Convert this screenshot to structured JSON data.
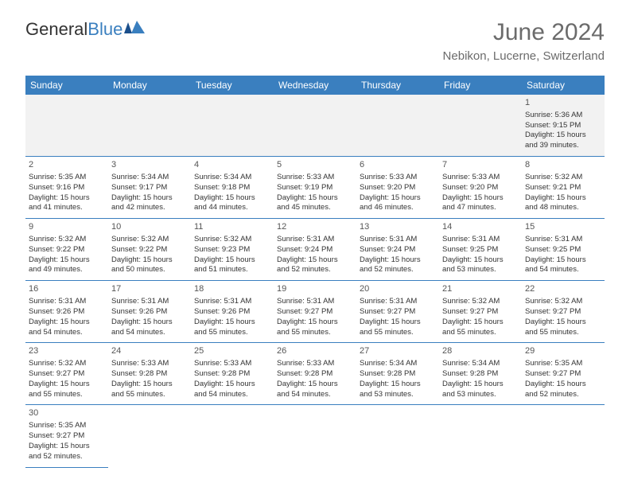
{
  "logo": {
    "text1": "General",
    "text2": "Blue"
  },
  "title": "June 2024",
  "location": "Nebikon, Lucerne, Switzerland",
  "colors": {
    "header_bg": "#3a7fbf",
    "header_text": "#ffffff",
    "alt_row_bg": "#f2f2f2",
    "border": "#3a7fbf",
    "text": "#333333",
    "title_text": "#6b6b6b"
  },
  "typography": {
    "title_fontsize": 30,
    "location_fontsize": 15,
    "dayheader_fontsize": 12,
    "cell_fontsize": 9.5
  },
  "day_headers": [
    "Sunday",
    "Monday",
    "Tuesday",
    "Wednesday",
    "Thursday",
    "Friday",
    "Saturday"
  ],
  "weeks": [
    [
      null,
      null,
      null,
      null,
      null,
      null,
      {
        "n": "1",
        "sr": "Sunrise: 5:36 AM",
        "ss": "Sunset: 9:15 PM",
        "d1": "Daylight: 15 hours",
        "d2": "and 39 minutes."
      }
    ],
    [
      {
        "n": "2",
        "sr": "Sunrise: 5:35 AM",
        "ss": "Sunset: 9:16 PM",
        "d1": "Daylight: 15 hours",
        "d2": "and 41 minutes."
      },
      {
        "n": "3",
        "sr": "Sunrise: 5:34 AM",
        "ss": "Sunset: 9:17 PM",
        "d1": "Daylight: 15 hours",
        "d2": "and 42 minutes."
      },
      {
        "n": "4",
        "sr": "Sunrise: 5:34 AM",
        "ss": "Sunset: 9:18 PM",
        "d1": "Daylight: 15 hours",
        "d2": "and 44 minutes."
      },
      {
        "n": "5",
        "sr": "Sunrise: 5:33 AM",
        "ss": "Sunset: 9:19 PM",
        "d1": "Daylight: 15 hours",
        "d2": "and 45 minutes."
      },
      {
        "n": "6",
        "sr": "Sunrise: 5:33 AM",
        "ss": "Sunset: 9:20 PM",
        "d1": "Daylight: 15 hours",
        "d2": "and 46 minutes."
      },
      {
        "n": "7",
        "sr": "Sunrise: 5:33 AM",
        "ss": "Sunset: 9:20 PM",
        "d1": "Daylight: 15 hours",
        "d2": "and 47 minutes."
      },
      {
        "n": "8",
        "sr": "Sunrise: 5:32 AM",
        "ss": "Sunset: 9:21 PM",
        "d1": "Daylight: 15 hours",
        "d2": "and 48 minutes."
      }
    ],
    [
      {
        "n": "9",
        "sr": "Sunrise: 5:32 AM",
        "ss": "Sunset: 9:22 PM",
        "d1": "Daylight: 15 hours",
        "d2": "and 49 minutes."
      },
      {
        "n": "10",
        "sr": "Sunrise: 5:32 AM",
        "ss": "Sunset: 9:22 PM",
        "d1": "Daylight: 15 hours",
        "d2": "and 50 minutes."
      },
      {
        "n": "11",
        "sr": "Sunrise: 5:32 AM",
        "ss": "Sunset: 9:23 PM",
        "d1": "Daylight: 15 hours",
        "d2": "and 51 minutes."
      },
      {
        "n": "12",
        "sr": "Sunrise: 5:31 AM",
        "ss": "Sunset: 9:24 PM",
        "d1": "Daylight: 15 hours",
        "d2": "and 52 minutes."
      },
      {
        "n": "13",
        "sr": "Sunrise: 5:31 AM",
        "ss": "Sunset: 9:24 PM",
        "d1": "Daylight: 15 hours",
        "d2": "and 52 minutes."
      },
      {
        "n": "14",
        "sr": "Sunrise: 5:31 AM",
        "ss": "Sunset: 9:25 PM",
        "d1": "Daylight: 15 hours",
        "d2": "and 53 minutes."
      },
      {
        "n": "15",
        "sr": "Sunrise: 5:31 AM",
        "ss": "Sunset: 9:25 PM",
        "d1": "Daylight: 15 hours",
        "d2": "and 54 minutes."
      }
    ],
    [
      {
        "n": "16",
        "sr": "Sunrise: 5:31 AM",
        "ss": "Sunset: 9:26 PM",
        "d1": "Daylight: 15 hours",
        "d2": "and 54 minutes."
      },
      {
        "n": "17",
        "sr": "Sunrise: 5:31 AM",
        "ss": "Sunset: 9:26 PM",
        "d1": "Daylight: 15 hours",
        "d2": "and 54 minutes."
      },
      {
        "n": "18",
        "sr": "Sunrise: 5:31 AM",
        "ss": "Sunset: 9:26 PM",
        "d1": "Daylight: 15 hours",
        "d2": "and 55 minutes."
      },
      {
        "n": "19",
        "sr": "Sunrise: 5:31 AM",
        "ss": "Sunset: 9:27 PM",
        "d1": "Daylight: 15 hours",
        "d2": "and 55 minutes."
      },
      {
        "n": "20",
        "sr": "Sunrise: 5:31 AM",
        "ss": "Sunset: 9:27 PM",
        "d1": "Daylight: 15 hours",
        "d2": "and 55 minutes."
      },
      {
        "n": "21",
        "sr": "Sunrise: 5:32 AM",
        "ss": "Sunset: 9:27 PM",
        "d1": "Daylight: 15 hours",
        "d2": "and 55 minutes."
      },
      {
        "n": "22",
        "sr": "Sunrise: 5:32 AM",
        "ss": "Sunset: 9:27 PM",
        "d1": "Daylight: 15 hours",
        "d2": "and 55 minutes."
      }
    ],
    [
      {
        "n": "23",
        "sr": "Sunrise: 5:32 AM",
        "ss": "Sunset: 9:27 PM",
        "d1": "Daylight: 15 hours",
        "d2": "and 55 minutes."
      },
      {
        "n": "24",
        "sr": "Sunrise: 5:33 AM",
        "ss": "Sunset: 9:28 PM",
        "d1": "Daylight: 15 hours",
        "d2": "and 55 minutes."
      },
      {
        "n": "25",
        "sr": "Sunrise: 5:33 AM",
        "ss": "Sunset: 9:28 PM",
        "d1": "Daylight: 15 hours",
        "d2": "and 54 minutes."
      },
      {
        "n": "26",
        "sr": "Sunrise: 5:33 AM",
        "ss": "Sunset: 9:28 PM",
        "d1": "Daylight: 15 hours",
        "d2": "and 54 minutes."
      },
      {
        "n": "27",
        "sr": "Sunrise: 5:34 AM",
        "ss": "Sunset: 9:28 PM",
        "d1": "Daylight: 15 hours",
        "d2": "and 53 minutes."
      },
      {
        "n": "28",
        "sr": "Sunrise: 5:34 AM",
        "ss": "Sunset: 9:28 PM",
        "d1": "Daylight: 15 hours",
        "d2": "and 53 minutes."
      },
      {
        "n": "29",
        "sr": "Sunrise: 5:35 AM",
        "ss": "Sunset: 9:27 PM",
        "d1": "Daylight: 15 hours",
        "d2": "and 52 minutes."
      }
    ],
    [
      {
        "n": "30",
        "sr": "Sunrise: 5:35 AM",
        "ss": "Sunset: 9:27 PM",
        "d1": "Daylight: 15 hours",
        "d2": "and 52 minutes."
      },
      null,
      null,
      null,
      null,
      null,
      null
    ]
  ]
}
